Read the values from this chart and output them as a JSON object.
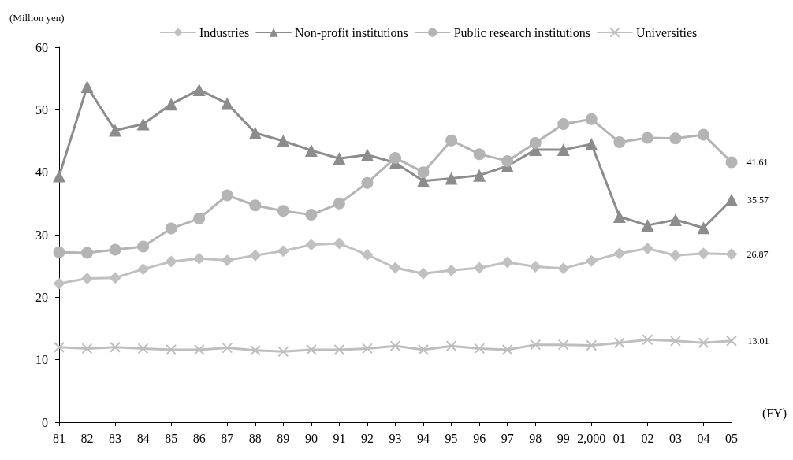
{
  "chart_data": {
    "type": "line",
    "ylabel": "(Million yen)",
    "xlabel": "(FY)",
    "categories": [
      "81",
      "82",
      "83",
      "84",
      "85",
      "86",
      "87",
      "88",
      "89",
      "90",
      "91",
      "92",
      "93",
      "94",
      "95",
      "96",
      "97",
      "98",
      "99",
      "2,000",
      "01",
      "02",
      "03",
      "04",
      "05"
    ],
    "ylim": [
      0,
      60
    ],
    "yticks": [
      0,
      10,
      20,
      30,
      40,
      50,
      60
    ],
    "grid": false,
    "legend": "top",
    "line_style": "solid",
    "series": [
      {
        "name": "Industries",
        "color": "#c0c0c0",
        "marker": "diamond",
        "values": [
          22.2,
          23.0,
          23.1,
          24.5,
          25.7,
          26.2,
          25.9,
          26.7,
          27.4,
          28.4,
          28.6,
          26.8,
          24.7,
          23.8,
          24.3,
          24.7,
          25.6,
          24.9,
          24.6,
          25.8,
          27.0,
          27.8,
          26.7,
          27.0,
          26.87
        ],
        "value_labels": [
          null,
          null,
          null,
          null,
          null,
          null,
          null,
          null,
          null,
          null,
          null,
          null,
          null,
          null,
          null,
          null,
          null,
          null,
          null,
          null,
          null,
          null,
          null,
          null,
          "26.87"
        ]
      },
      {
        "name": "Non-profit institutions",
        "color": "#8c8c8c",
        "marker": "triangle",
        "values": [
          39.4,
          53.7,
          46.7,
          47.7,
          50.9,
          53.2,
          51.0,
          46.3,
          45.0,
          43.5,
          42.2,
          42.8,
          41.5,
          38.6,
          39.0,
          39.5,
          41.0,
          43.6,
          43.6,
          44.5,
          32.9,
          31.5,
          32.4,
          31.1,
          35.57
        ],
        "value_labels": [
          null,
          null,
          null,
          null,
          null,
          null,
          null,
          null,
          null,
          null,
          null,
          null,
          null,
          null,
          null,
          null,
          null,
          null,
          null,
          null,
          null,
          null,
          null,
          null,
          "35.57"
        ]
      },
      {
        "name": "Public research institutions",
        "color": "#b4b4b4",
        "marker": "circle",
        "values": [
          27.2,
          27.1,
          27.6,
          28.1,
          31.0,
          32.6,
          36.3,
          34.7,
          33.8,
          33.2,
          35.0,
          38.3,
          42.3,
          40.0,
          45.1,
          42.9,
          41.8,
          44.7,
          47.7,
          48.5,
          44.8,
          45.5,
          45.4,
          46.0,
          41.61
        ],
        "value_labels": [
          null,
          null,
          null,
          null,
          null,
          null,
          null,
          null,
          null,
          null,
          null,
          null,
          null,
          null,
          null,
          null,
          null,
          null,
          null,
          null,
          null,
          null,
          null,
          null,
          "41.61"
        ]
      },
      {
        "name": "Universities",
        "color": "#bebebe",
        "marker": "cross",
        "values": [
          12.0,
          11.8,
          12.0,
          11.8,
          11.6,
          11.6,
          11.9,
          11.5,
          11.3,
          11.6,
          11.6,
          11.8,
          12.2,
          11.6,
          12.2,
          11.8,
          11.6,
          12.4,
          12.4,
          12.3,
          12.7,
          13.2,
          13.0,
          12.7,
          13.01
        ],
        "value_labels": [
          null,
          null,
          null,
          null,
          null,
          null,
          null,
          null,
          null,
          null,
          null,
          null,
          null,
          null,
          null,
          null,
          null,
          null,
          null,
          null,
          null,
          null,
          null,
          null,
          "13.01"
        ]
      }
    ]
  }
}
